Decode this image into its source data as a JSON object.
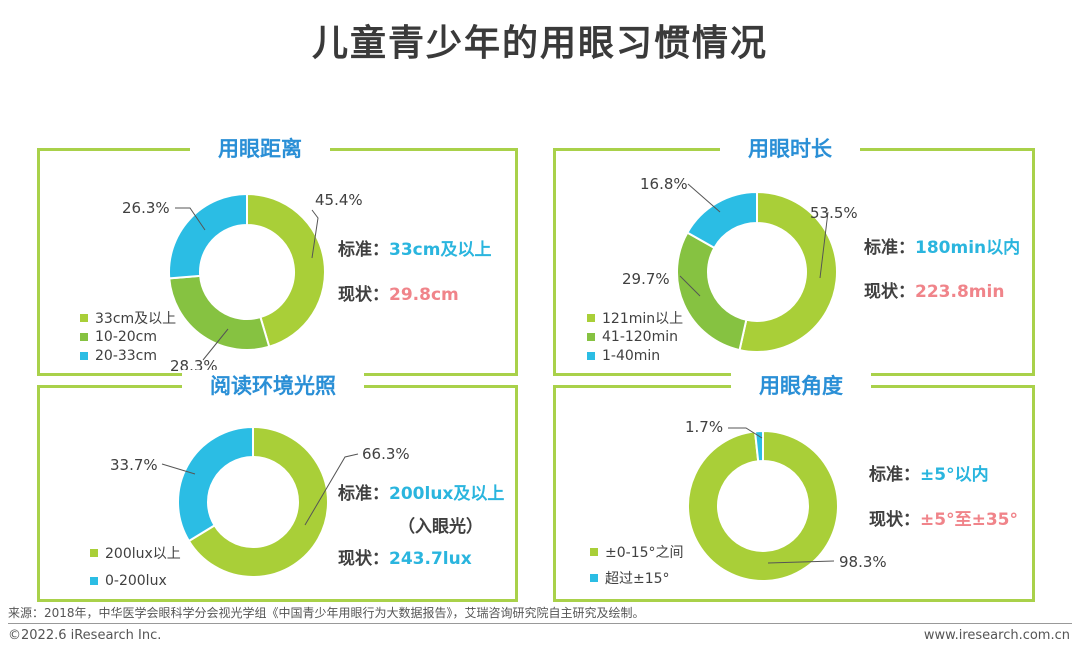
{
  "title": "儿童青少年的用眼习惯情况",
  "colors": {
    "c1": "#a9cf38",
    "c2": "#86c241",
    "c3": "#2bbde4"
  },
  "chart_data": [
    {
      "type": "donut",
      "title": "用眼距离",
      "series": [
        {
          "name": "33cm及以上",
          "value": 45.4,
          "label": "45.4%"
        },
        {
          "name": "10-20cm",
          "value": 28.3,
          "label": "28.3%"
        },
        {
          "name": "20-33cm",
          "value": 26.3,
          "label": "26.3%"
        }
      ],
      "standard_label": "标准：",
      "standard_value": "33cm及以上",
      "current_label": "现状：",
      "current_value": "29.8cm"
    },
    {
      "type": "donut",
      "title": "用眼时长",
      "series": [
        {
          "name": "121min以上",
          "value": 53.5,
          "label": "53.5%"
        },
        {
          "name": "41-120min",
          "value": 29.7,
          "label": "29.7%"
        },
        {
          "name": "1-40min",
          "value": 16.8,
          "label": "16.8%"
        }
      ],
      "standard_label": "标准：",
      "standard_value": "180min以内",
      "current_label": "现状：",
      "current_value": "223.8min"
    },
    {
      "type": "donut",
      "title": "阅读环境光照",
      "series": [
        {
          "name": "200lux以上",
          "value": 66.3,
          "label": "66.3%"
        },
        {
          "name": "0-200lux",
          "value": 33.7,
          "label": "33.7%"
        }
      ],
      "standard_label": "标准：",
      "standard_value": "200lux及以上",
      "standard_note": "（入眼光）",
      "current_label": "现状：",
      "current_value": "243.7lux"
    },
    {
      "type": "donut",
      "title": "用眼角度",
      "series": [
        {
          "name": "±0-15°之间",
          "value": 98.3,
          "label": "98.3%"
        },
        {
          "name": "超过±15°",
          "value": 1.7,
          "label": "1.7%"
        }
      ],
      "standard_label": "标准：",
      "standard_value": "±5°以内",
      "current_label": "现状：",
      "current_value": "±5°至±35°"
    }
  ],
  "footer": {
    "source": "来源：2018年，中华医学会眼科学分会视光学组《中国青少年用眼行为大数据报告》，艾瑞咨询研究院自主研究及绘制。",
    "copyright": "©2022.6 iResearch Inc.",
    "website": "www.iresearch.com.cn"
  }
}
